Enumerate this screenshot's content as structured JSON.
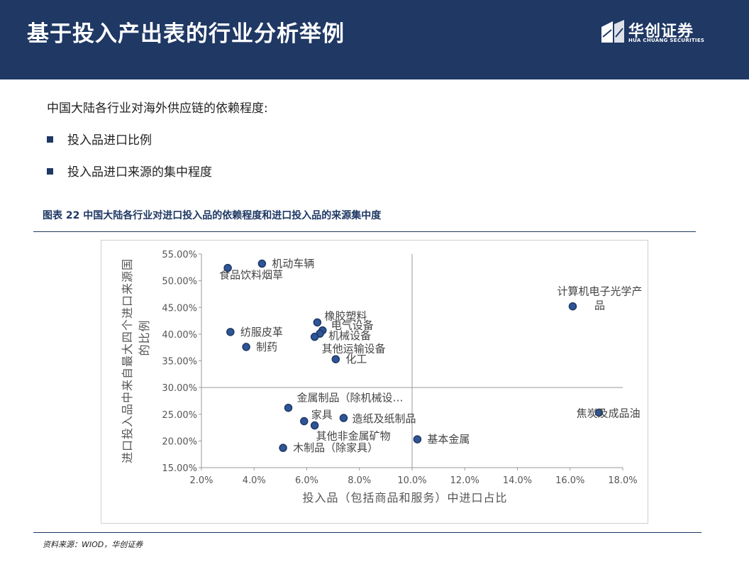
{
  "header": {
    "title": "基于投入产出表的行业分析举例"
  },
  "logo": {
    "name_cn": "华创证券",
    "name_en": "HUA CHUANG SECURITIES"
  },
  "intro": "中国大陆各行业对海外供应链的依赖程度:",
  "bullets": [
    "投入品进口比例",
    "投入品进口来源的集中程度"
  ],
  "caption": "图表 22 中国大陆各行业对进口投入品的依赖程度和进口投入品的来源集中度",
  "source": "资料来源：WIOD，华创证券",
  "colors": {
    "header_bg": "#1f3864",
    "point_fill": "#2e5597",
    "point_stroke": "#1f3864"
  },
  "chart_data": {
    "type": "scatter",
    "xlabel": "投入品（包括商品和服务）中进口占比",
    "ylabel": "进口投入品中来自最大四个进口来源国的比例",
    "xlim": [
      0.02,
      0.18
    ],
    "ylim": [
      0.15,
      0.55
    ],
    "xticks": [
      "2.0%",
      "4.0%",
      "6.0%",
      "8.0%",
      "10.0%",
      "12.0%",
      "14.0%",
      "16.0%",
      "18.0%"
    ],
    "yticks": [
      "55.00%",
      "50.00%",
      "45.00%",
      "40.00%",
      "35.00%",
      "30.00%",
      "25.00%",
      "20.00%",
      "15.00%"
    ],
    "cross_lines": {
      "x": 0.1,
      "y": 0.3
    },
    "points": [
      {
        "label": "机动车辆",
        "x": 0.043,
        "y": 0.532
      },
      {
        "label": "食品饮料烟草",
        "x": 0.03,
        "y": 0.524
      },
      {
        "label": "计算机电子光学产",
        "label2": "品",
        "x": 0.161,
        "y": 0.452
      },
      {
        "label": "橡胶塑料",
        "x": 0.064,
        "y": 0.422
      },
      {
        "label": "电气设备",
        "x": 0.066,
        "y": 0.407
      },
      {
        "label": "机械设备",
        "x": 0.065,
        "y": 0.401
      },
      {
        "label": "其他运输设备",
        "x": 0.063,
        "y": 0.395
      },
      {
        "label": "纺服皮革",
        "x": 0.031,
        "y": 0.404
      },
      {
        "label": "制药",
        "x": 0.037,
        "y": 0.376
      },
      {
        "label": "化工",
        "x": 0.071,
        "y": 0.353
      },
      {
        "label": "金属制品（除机械设…",
        "x": 0.053,
        "y": 0.262
      },
      {
        "label": "焦炭及成品油",
        "x": 0.171,
        "y": 0.253
      },
      {
        "label": "家具",
        "x": 0.059,
        "y": 0.237
      },
      {
        "label": "造纸及纸制品",
        "x": 0.074,
        "y": 0.243
      },
      {
        "label": "其他非金属矿物",
        "x": 0.063,
        "y": 0.229
      },
      {
        "label": "基本金属",
        "x": 0.102,
        "y": 0.203
      },
      {
        "label": "木制品（除家具）",
        "x": 0.051,
        "y": 0.187
      }
    ]
  }
}
